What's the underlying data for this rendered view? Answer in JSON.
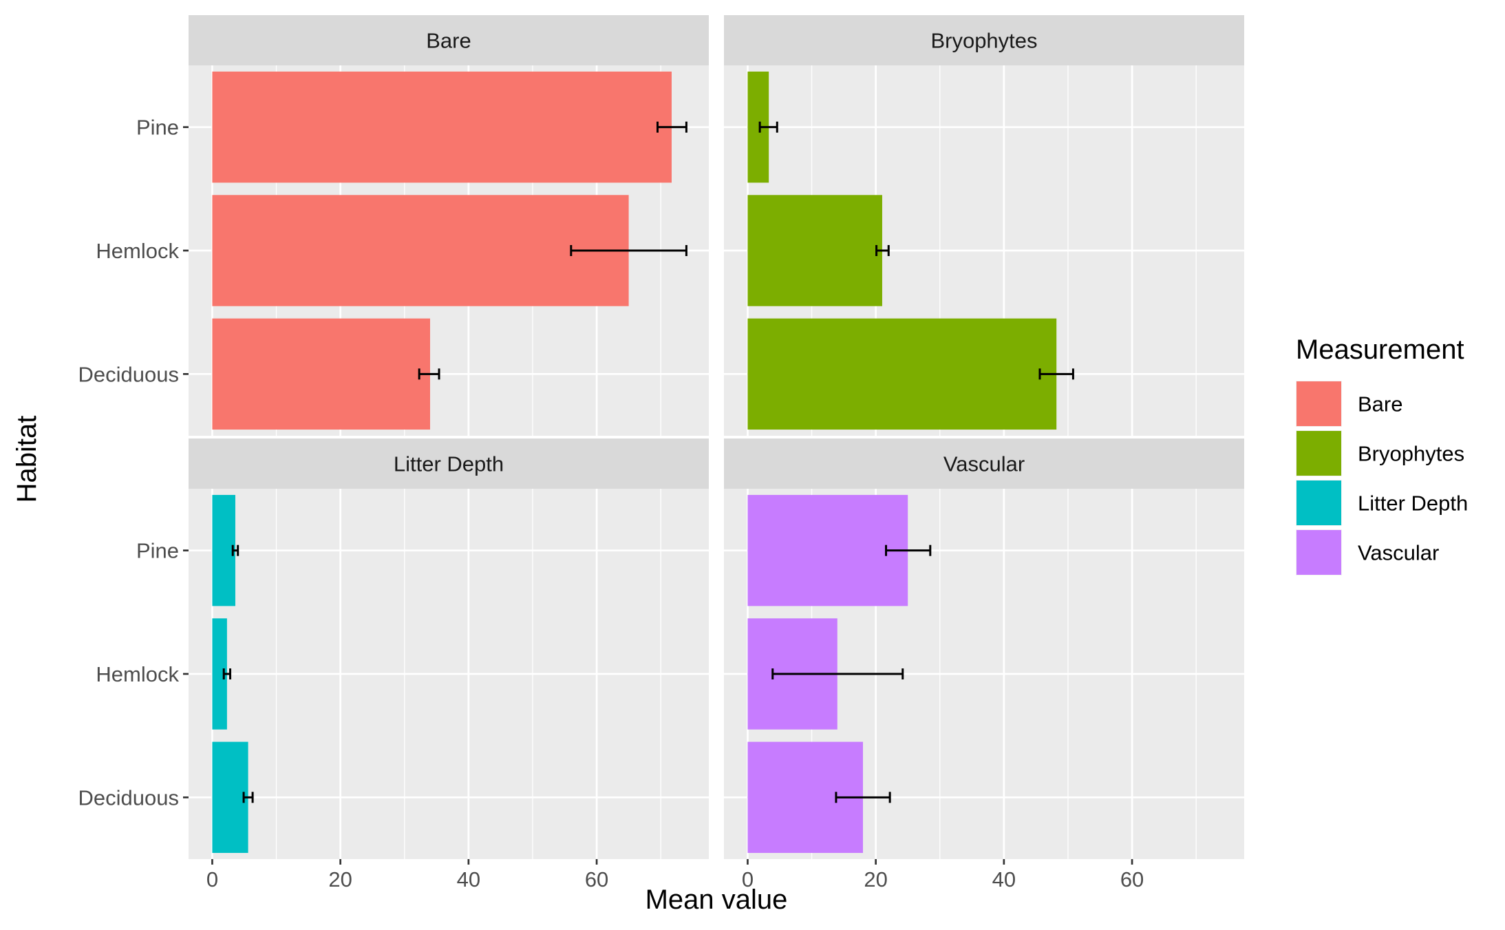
{
  "chart_data": {
    "type": "bar",
    "orientation": "horizontal",
    "facets": [
      "Bare",
      "Bryophytes",
      "Litter Depth",
      "Vascular"
    ],
    "categories": [
      "Deciduous",
      "Hemlock",
      "Pine"
    ],
    "series": [
      {
        "name": "Bare",
        "color": "#F8766D",
        "values": [
          34,
          65,
          71.7
        ],
        "error_low": [
          32.3,
          56,
          69.5
        ],
        "error_high": [
          35.4,
          74,
          74
        ]
      },
      {
        "name": "Bryophytes",
        "color": "#7CAE00",
        "values": [
          48.2,
          21,
          3.3
        ],
        "error_low": [
          45.6,
          20.1,
          1.9
        ],
        "error_high": [
          50.8,
          22,
          4.6
        ]
      },
      {
        "name": "Litter Depth",
        "color": "#00BFC4",
        "values": [
          5.6,
          2.3,
          3.6
        ],
        "error_low": [
          4.9,
          1.8,
          3.2
        ],
        "error_high": [
          6.3,
          2.8,
          4.0
        ]
      },
      {
        "name": "Vascular",
        "color": "#C77CFF",
        "values": [
          18,
          14,
          25
        ],
        "error_low": [
          13.8,
          3.9,
          21.6
        ],
        "error_high": [
          22.2,
          24.2,
          28.5
        ]
      }
    ],
    "xlabel": "Mean value",
    "ylabel": "Habitat",
    "xlim": [
      -3.7,
      77.5
    ],
    "xticks": [
      0,
      20,
      40,
      60
    ],
    "x_tick_labels": [
      "0",
      "20",
      "40",
      "60"
    ],
    "grid": true,
    "legend": {
      "title": "Measurement",
      "position": "right",
      "labels": [
        "Bare",
        "Bryophytes",
        "Litter Depth",
        "Vascular"
      ]
    }
  }
}
